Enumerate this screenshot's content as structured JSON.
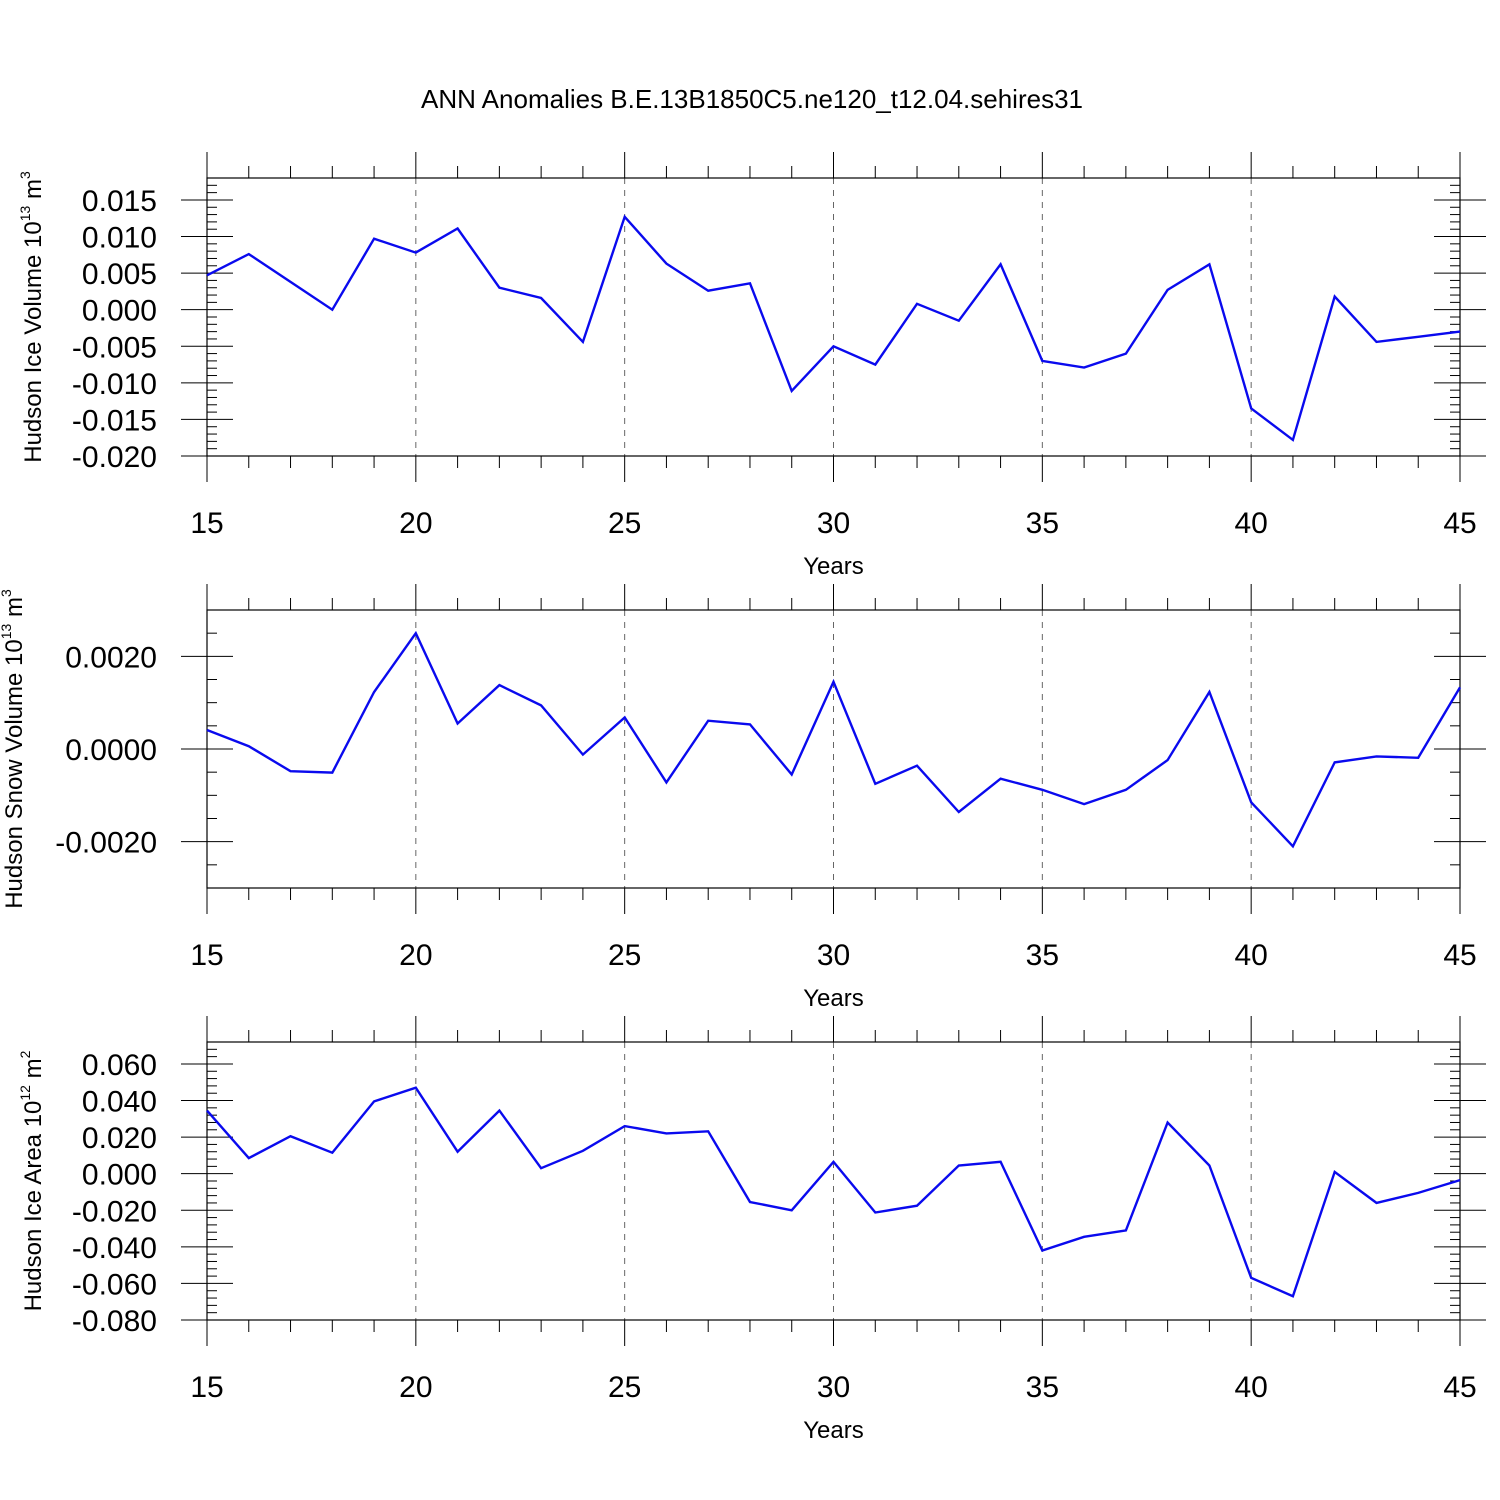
{
  "title": "ANN Anomalies B.E.13B1850C5.ne120_t12.04.sehires31",
  "colors": {
    "line": "#0a0aee",
    "axis": "#000000",
    "grid": "#666666"
  },
  "chart_data": [
    {
      "type": "line",
      "series_name": "Hudson Ice Volume",
      "ylabel": "Hudson Ice Volume 10",
      "ylabel_exp": "13",
      "ylabel_unit": " m",
      "ylabel_unit_exp": "3",
      "xlabel": "Years",
      "xlim": [
        15,
        45
      ],
      "ylim": [
        -0.02,
        0.018
      ],
      "xticks": [
        15,
        20,
        25,
        30,
        35,
        40,
        45
      ],
      "yticks": [
        -0.02,
        -0.015,
        -0.01,
        -0.005,
        0.0,
        0.005,
        0.01,
        0.015
      ],
      "ytick_labels": [
        "-0.020",
        "-0.015",
        "-0.010",
        "-0.005",
        "0.000",
        "0.005",
        "0.010",
        "0.015"
      ],
      "y_minor_step": 0.001,
      "x": [
        15,
        16,
        17,
        18,
        19,
        20,
        21,
        22,
        23,
        24,
        25,
        26,
        27,
        28,
        29,
        30,
        31,
        32,
        33,
        34,
        35,
        36,
        37,
        38,
        39,
        40,
        41,
        42,
        43,
        44,
        45
      ],
      "values": [
        0.0047,
        0.0076,
        0.0038,
        0.0,
        0.0097,
        0.0078,
        0.0111,
        0.003,
        0.0016,
        -0.0044,
        0.0127,
        0.0063,
        0.0026,
        0.0036,
        -0.0111,
        -0.005,
        -0.0075,
        0.0008,
        -0.0015,
        0.0062,
        -0.007,
        -0.0079,
        -0.006,
        0.0027,
        0.0062,
        -0.0135,
        -0.0178,
        0.0018,
        -0.0044,
        -0.0037,
        -0.003
      ]
    },
    {
      "type": "line",
      "series_name": "Hudson Snow Volume",
      "ylabel": "Hudson Snow Volume 10",
      "ylabel_exp": "13",
      "ylabel_unit": " m",
      "ylabel_unit_exp": "3",
      "xlabel": "Years",
      "xlim": [
        15,
        45
      ],
      "ylim": [
        -0.003,
        0.003
      ],
      "xticks": [
        15,
        20,
        25,
        30,
        35,
        40,
        45
      ],
      "yticks": [
        -0.002,
        0.0,
        0.002
      ],
      "ytick_labels": [
        "-0.0020",
        "0.0000",
        "0.0020"
      ],
      "y_minor_step": 0.0005,
      "x": [
        15,
        16,
        17,
        18,
        19,
        20,
        21,
        22,
        23,
        24,
        25,
        26,
        27,
        28,
        29,
        30,
        31,
        32,
        33,
        34,
        35,
        36,
        37,
        38,
        39,
        40,
        41,
        42,
        43,
        44,
        45
      ],
      "values": [
        0.00041,
        6e-05,
        -0.00048,
        -0.00051,
        0.00123,
        0.0025,
        0.00055,
        0.00138,
        0.00094,
        -0.00012,
        0.00068,
        -0.00072,
        0.00061,
        0.00053,
        -0.00055,
        0.00145,
        -0.00075,
        -0.00036,
        -0.00136,
        -0.00064,
        -0.00088,
        -0.00119,
        -0.00088,
        -0.00024,
        0.00123,
        -0.00115,
        -0.0021,
        -0.00029,
        -0.00016,
        -0.00019,
        0.00133
      ]
    },
    {
      "type": "line",
      "series_name": "Hudson Ice Area",
      "ylabel": "Hudson Ice Area 10",
      "ylabel_exp": "12",
      "ylabel_unit": " m",
      "ylabel_unit_exp": "2",
      "xlabel": "Years",
      "xlim": [
        15,
        45
      ],
      "ylim": [
        -0.08,
        0.072
      ],
      "xticks": [
        15,
        20,
        25,
        30,
        35,
        40,
        45
      ],
      "yticks": [
        -0.08,
        -0.06,
        -0.04,
        -0.02,
        0.0,
        0.02,
        0.04,
        0.06
      ],
      "ytick_labels": [
        "-0.080",
        "-0.060",
        "-0.040",
        "-0.020",
        "0.000",
        "0.020",
        "0.040",
        "0.060"
      ],
      "y_minor_step": 0.004,
      "x": [
        15,
        16,
        17,
        18,
        19,
        20,
        21,
        22,
        23,
        24,
        25,
        26,
        27,
        28,
        29,
        30,
        31,
        32,
        33,
        34,
        35,
        36,
        37,
        38,
        39,
        40,
        41,
        42,
        43,
        44,
        45
      ],
      "values": [
        0.0345,
        0.0085,
        0.0205,
        0.0115,
        0.0395,
        0.047,
        0.012,
        0.0345,
        0.003,
        0.0125,
        0.026,
        0.022,
        0.0232,
        -0.0155,
        -0.02,
        0.0065,
        -0.0212,
        -0.0175,
        0.0045,
        0.0065,
        -0.042,
        -0.0345,
        -0.031,
        0.028,
        0.0045,
        -0.057,
        -0.067,
        0.001,
        -0.016,
        -0.0105,
        -0.0035
      ]
    }
  ]
}
